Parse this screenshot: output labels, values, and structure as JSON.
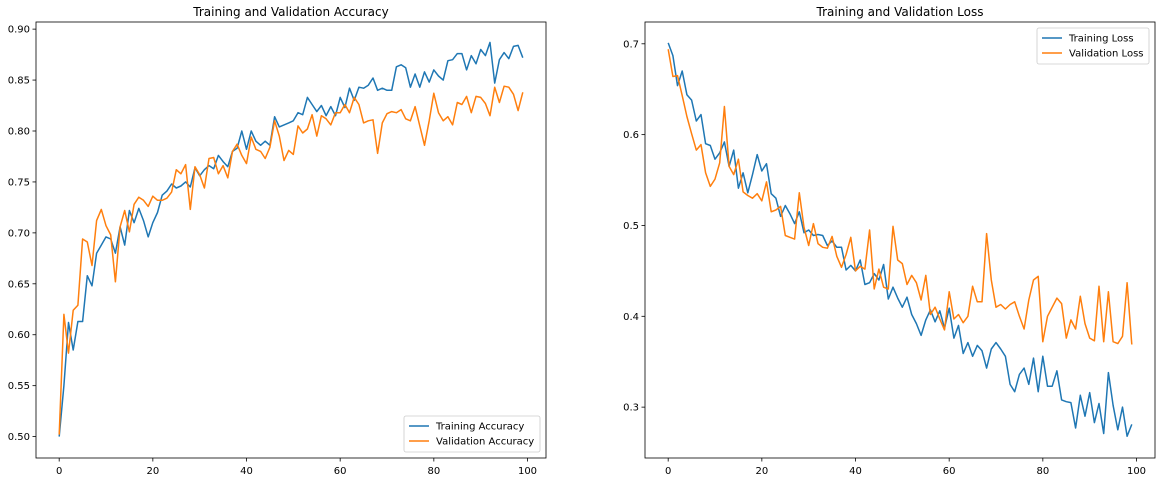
{
  "chart_data": [
    {
      "type": "line",
      "title": "Training and Validation Accuracy",
      "xlabel": "",
      "ylabel": "",
      "xlim": [
        -4.95,
        103.95
      ],
      "ylim": [
        0.479,
        0.907
      ],
      "xticks": [
        0,
        20,
        40,
        60,
        80,
        100
      ],
      "yticks": [
        0.5,
        0.55,
        0.6,
        0.65,
        0.7,
        0.75,
        0.8,
        0.85,
        0.9
      ],
      "ytick_decimals": 2,
      "grid": false,
      "legend": "lower right",
      "series": [
        {
          "name": "Training Accuracy",
          "color": "#1f77b4",
          "values": [
            0.5,
            0.55,
            0.612,
            0.585,
            0.613,
            0.613,
            0.658,
            0.648,
            0.68,
            0.688,
            0.696,
            0.694,
            0.68,
            0.706,
            0.688,
            0.722,
            0.71,
            0.724,
            0.712,
            0.696,
            0.71,
            0.72,
            0.737,
            0.741,
            0.748,
            0.744,
            0.746,
            0.75,
            0.745,
            0.764,
            0.756,
            0.762,
            0.766,
            0.763,
            0.776,
            0.77,
            0.765,
            0.78,
            0.783,
            0.8,
            0.782,
            0.8,
            0.79,
            0.786,
            0.79,
            0.786,
            0.814,
            0.804,
            0.806,
            0.808,
            0.81,
            0.818,
            0.816,
            0.833,
            0.826,
            0.819,
            0.825,
            0.815,
            0.824,
            0.815,
            0.833,
            0.823,
            0.842,
            0.83,
            0.843,
            0.842,
            0.845,
            0.852,
            0.84,
            0.842,
            0.84,
            0.84,
            0.863,
            0.865,
            0.862,
            0.843,
            0.856,
            0.843,
            0.858,
            0.848,
            0.86,
            0.854,
            0.85,
            0.869,
            0.87,
            0.876,
            0.876,
            0.86,
            0.874,
            0.866,
            0.88,
            0.874,
            0.887,
            0.847,
            0.87,
            0.877,
            0.871,
            0.883,
            0.884,
            0.872
          ]
        },
        {
          "name": "Validation Accuracy",
          "color": "#ff7f0e",
          "values": [
            0.502,
            0.62,
            0.582,
            0.624,
            0.629,
            0.694,
            0.691,
            0.668,
            0.712,
            0.723,
            0.707,
            0.698,
            0.652,
            0.706,
            0.722,
            0.701,
            0.728,
            0.735,
            0.732,
            0.726,
            0.736,
            0.732,
            0.732,
            0.734,
            0.74,
            0.762,
            0.758,
            0.767,
            0.723,
            0.765,
            0.757,
            0.744,
            0.773,
            0.774,
            0.758,
            0.766,
            0.754,
            0.78,
            0.787,
            0.776,
            0.768,
            0.794,
            0.782,
            0.78,
            0.773,
            0.784,
            0.81,
            0.795,
            0.771,
            0.781,
            0.777,
            0.805,
            0.798,
            0.802,
            0.816,
            0.795,
            0.815,
            0.812,
            0.806,
            0.818,
            0.818,
            0.826,
            0.818,
            0.833,
            0.826,
            0.808,
            0.81,
            0.811,
            0.778,
            0.808,
            0.817,
            0.819,
            0.818,
            0.821,
            0.812,
            0.81,
            0.824,
            0.805,
            0.786,
            0.81,
            0.837,
            0.818,
            0.81,
            0.814,
            0.806,
            0.828,
            0.826,
            0.834,
            0.818,
            0.834,
            0.833,
            0.827,
            0.815,
            0.843,
            0.828,
            0.844,
            0.843,
            0.836,
            0.82,
            0.838
          ]
        }
      ]
    },
    {
      "type": "line",
      "title": "Training and Validation Loss",
      "xlabel": "",
      "ylabel": "",
      "xlim": [
        -4.95,
        103.95
      ],
      "ylim": [
        0.244,
        0.724
      ],
      "xticks": [
        0,
        20,
        40,
        60,
        80,
        100
      ],
      "yticks": [
        0.3,
        0.4,
        0.5,
        0.6,
        0.7
      ],
      "ytick_decimals": 1,
      "grid": false,
      "legend": "upper right",
      "series": [
        {
          "name": "Training Loss",
          "color": "#1f77b4",
          "values": [
            0.701,
            0.687,
            0.654,
            0.67,
            0.644,
            0.638,
            0.615,
            0.622,
            0.59,
            0.588,
            0.573,
            0.58,
            0.592,
            0.565,
            0.583,
            0.541,
            0.558,
            0.536,
            0.556,
            0.578,
            0.56,
            0.568,
            0.535,
            0.53,
            0.51,
            0.522,
            0.513,
            0.502,
            0.515,
            0.492,
            0.495,
            0.489,
            0.49,
            0.489,
            0.478,
            0.483,
            0.476,
            0.476,
            0.451,
            0.456,
            0.45,
            0.462,
            0.435,
            0.437,
            0.447,
            0.44,
            0.457,
            0.419,
            0.432,
            0.42,
            0.41,
            0.421,
            0.402,
            0.392,
            0.379,
            0.396,
            0.407,
            0.394,
            0.406,
            0.387,
            0.409,
            0.376,
            0.39,
            0.359,
            0.371,
            0.356,
            0.368,
            0.362,
            0.343,
            0.364,
            0.371,
            0.364,
            0.356,
            0.325,
            0.317,
            0.336,
            0.343,
            0.325,
            0.354,
            0.317,
            0.356,
            0.323,
            0.323,
            0.34,
            0.308,
            0.306,
            0.305,
            0.277,
            0.313,
            0.29,
            0.316,
            0.283,
            0.304,
            0.271,
            0.338,
            0.302,
            0.275,
            0.3,
            0.268,
            0.281
          ]
        },
        {
          "name": "Validation Loss",
          "color": "#ff7f0e",
          "values": [
            0.694,
            0.664,
            0.665,
            0.643,
            0.62,
            0.601,
            0.583,
            0.589,
            0.558,
            0.543,
            0.551,
            0.569,
            0.631,
            0.565,
            0.556,
            0.573,
            0.537,
            0.533,
            0.53,
            0.535,
            0.527,
            0.548,
            0.515,
            0.517,
            0.521,
            0.489,
            0.487,
            0.485,
            0.536,
            0.498,
            0.478,
            0.502,
            0.48,
            0.476,
            0.475,
            0.488,
            0.466,
            0.454,
            0.468,
            0.487,
            0.45,
            0.455,
            0.452,
            0.495,
            0.43,
            0.452,
            0.432,
            0.43,
            0.499,
            0.462,
            0.458,
            0.435,
            0.445,
            0.437,
            0.418,
            0.445,
            0.402,
            0.41,
            0.397,
            0.385,
            0.427,
            0.397,
            0.402,
            0.393,
            0.4,
            0.433,
            0.416,
            0.416,
            0.491,
            0.44,
            0.41,
            0.413,
            0.408,
            0.413,
            0.416,
            0.4,
            0.386,
            0.418,
            0.44,
            0.444,
            0.372,
            0.4,
            0.41,
            0.42,
            0.414,
            0.376,
            0.396,
            0.386,
            0.422,
            0.392,
            0.376,
            0.373,
            0.433,
            0.372,
            0.427,
            0.372,
            0.37,
            0.378,
            0.437,
            0.369
          ]
        }
      ]
    }
  ]
}
